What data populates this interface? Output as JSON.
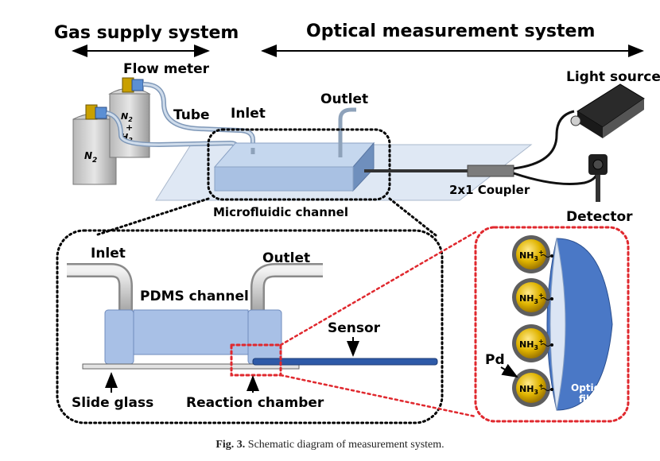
{
  "headers": {
    "gas": "Gas supply system",
    "optical": "Optical measurement system"
  },
  "top_labels": {
    "flow_meter": "Flow meter",
    "tube": "Tube",
    "inlet": "Inlet",
    "outlet": "Outlet",
    "light_source": "Light source",
    "detector": "Detector",
    "coupler": "2x1 Coupler",
    "microfluidic": "Microfluidic channel"
  },
  "cylinders": {
    "n2_left": "N",
    "sub2": "2",
    "mix_top": "N",
    "mix_plus": "+",
    "mix_bottom": "H"
  },
  "detail_labels": {
    "inlet": "Inlet",
    "outlet": "Outlet",
    "pdms": "PDMS channel",
    "sensor": "Sensor",
    "slide": "Slide glass",
    "chamber": "Reaction chamber"
  },
  "fiber_labels": {
    "nh3": "NH",
    "sub3": "3",
    "plus": "+",
    "pd": "Pd",
    "fiber_1": "Optical",
    "fiber_2": "fiber"
  },
  "caption": {
    "fig": "Fig. 3.",
    "text": "Schematic diagram of measurement system."
  },
  "colors": {
    "channel": "#adc6e6",
    "fiber": "#4a78c6",
    "gold": "#e0b400",
    "red_dots": "#e0282e"
  }
}
